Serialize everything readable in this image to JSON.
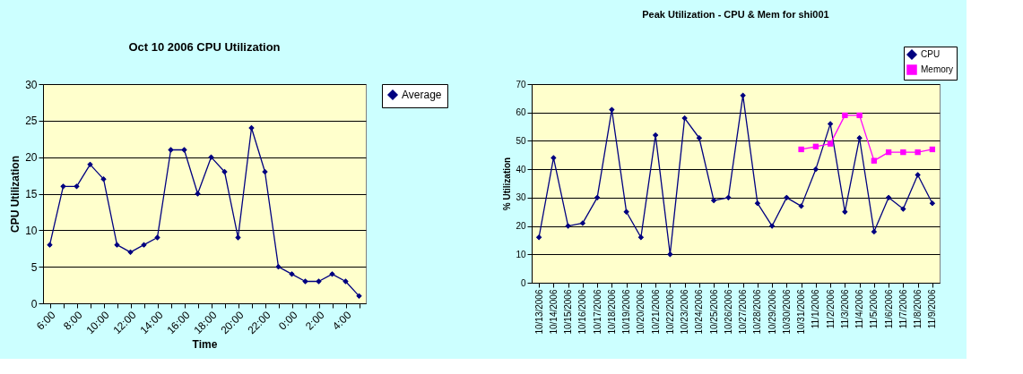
{
  "chart_data": [
    {
      "type": "line",
      "title": "Oct 10 2006 CPU Utilization",
      "xlabel": "Time",
      "ylabel": "CPU Utilization",
      "categories": [
        "6:00",
        null,
        "8:00",
        null,
        "10:00",
        null,
        "12:00",
        null,
        "14:00",
        null,
        "16:00",
        null,
        "18:00",
        null,
        "20:00",
        null,
        "22:00",
        null,
        "0:00",
        null,
        "2:00",
        null,
        "4:00",
        null
      ],
      "series": [
        {
          "name": "Average",
          "color": "#000080",
          "values": [
            8,
            16,
            16,
            19,
            17,
            8,
            7,
            8,
            9,
            21,
            21,
            15,
            20,
            18,
            9,
            24,
            18,
            5,
            4,
            3,
            3,
            4,
            3,
            1
          ]
        }
      ],
      "ylim": [
        0,
        30
      ],
      "yticks": [
        0,
        5,
        10,
        15,
        20,
        25,
        30
      ],
      "grid": "y",
      "legend": "right",
      "marker": "diamond",
      "line_style": "solid"
    },
    {
      "type": "line",
      "title": "Peak Utilization - CPU & Mem for shi001",
      "ylabel": "% Utilization",
      "categories": [
        "10/13/2006",
        "10/14/2006",
        "10/15/2006",
        "10/16/2006",
        "10/17/2006",
        "10/18/2006",
        "10/19/2006",
        "10/20/2006",
        "10/21/2006",
        "10/22/2006",
        "10/23/2006",
        "10/24/2006",
        "10/25/2006",
        "10/26/2006",
        "10/27/2006",
        "10/28/2006",
        "10/29/2006",
        "10/30/2006",
        "10/31/2006",
        "11/1/2006",
        "11/2/2006",
        "11/3/2006",
        "11/4/2006",
        "11/5/2006",
        "11/6/2006",
        "11/7/2006",
        "11/8/2006",
        "11/9/2006"
      ],
      "series": [
        {
          "name": "CPU",
          "color": "#000080",
          "marker": "diamond",
          "values": [
            16,
            44,
            20,
            21,
            30,
            61,
            25,
            16,
            52,
            10,
            58,
            51,
            29,
            30,
            66,
            28,
            20,
            30,
            27,
            40,
            56,
            25,
            51,
            18,
            30,
            26,
            38,
            28
          ]
        },
        {
          "name": "Memory",
          "color": "#ff00ff",
          "marker": "square",
          "values": [
            null,
            null,
            null,
            null,
            null,
            null,
            null,
            null,
            null,
            null,
            null,
            null,
            null,
            null,
            null,
            null,
            null,
            null,
            47,
            48,
            49,
            59,
            59,
            43,
            46,
            46,
            46,
            47
          ]
        }
      ],
      "ylim": [
        0,
        70
      ],
      "yticks": [
        0,
        10,
        20,
        30,
        40,
        50,
        60,
        70
      ],
      "grid": "y",
      "legend": "top right",
      "line_style": "solid"
    }
  ]
}
